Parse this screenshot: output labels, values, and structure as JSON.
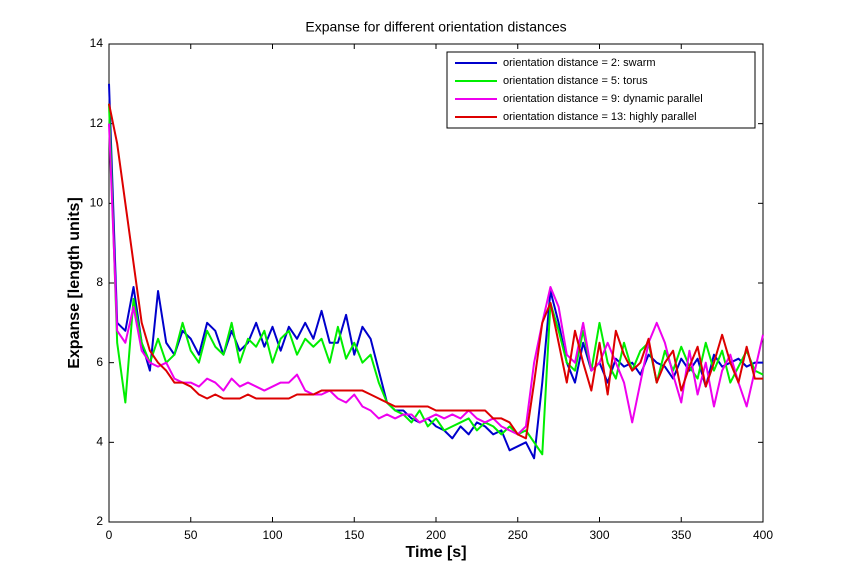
{
  "chart_data": {
    "type": "line",
    "title": "Expanse for different orientation distances",
    "x_label": "Time [s]",
    "y_label": "Expanse [length units]",
    "xlim": [
      0,
      400
    ],
    "xticks": [
      0,
      50,
      100,
      150,
      200,
      250,
      300,
      350,
      400
    ],
    "ylim": [
      2,
      14
    ],
    "yticks": [
      2,
      4,
      6,
      8,
      10,
      12,
      14
    ],
    "legend_position": "upper-right",
    "x": [
      0,
      5,
      10,
      15,
      20,
      25,
      30,
      35,
      40,
      45,
      50,
      55,
      60,
      65,
      70,
      75,
      80,
      85,
      90,
      95,
      100,
      105,
      110,
      115,
      120,
      125,
      130,
      135,
      140,
      145,
      150,
      155,
      160,
      165,
      170,
      175,
      180,
      185,
      190,
      195,
      200,
      205,
      210,
      215,
      220,
      225,
      230,
      235,
      240,
      245,
      250,
      255,
      260,
      265,
      270,
      275,
      280,
      285,
      290,
      295,
      300,
      305,
      310,
      315,
      320,
      325,
      330,
      335,
      340,
      345,
      350,
      355,
      360,
      365,
      370,
      375,
      380,
      385,
      390,
      395,
      400
    ],
    "series": [
      {
        "name": "orientation distance = 2: swarm",
        "color": "#0000cc",
        "values": [
          13,
          7,
          6.8,
          7.9,
          6.5,
          5.8,
          7.8,
          6.5,
          6.2,
          6.8,
          6.6,
          6.2,
          7.0,
          6.8,
          6.2,
          6.8,
          6.3,
          6.5,
          7.0,
          6.4,
          6.9,
          6.3,
          6.9,
          6.6,
          7.0,
          6.6,
          7.3,
          6.5,
          6.5,
          7.2,
          6.2,
          6.9,
          6.6,
          5.8,
          5.0,
          4.8,
          4.8,
          4.6,
          4.5,
          4.6,
          4.4,
          4.3,
          4.1,
          4.4,
          4.2,
          4.5,
          4.4,
          4.2,
          4.3,
          3.8,
          3.9,
          4.0,
          3.6,
          5.5,
          7.8,
          7.0,
          6.0,
          5.5,
          6.5,
          5.8,
          6.0,
          5.5,
          6.1,
          5.9,
          6.0,
          5.7,
          6.2,
          6.0,
          5.9,
          5.6,
          6.1,
          5.8,
          6.1,
          5.4,
          6.2,
          5.9,
          6.0,
          6.1,
          5.9,
          6.0,
          6.0
        ]
      },
      {
        "name": "orientation distance = 5: torus",
        "color": "#00ee00",
        "values": [
          12.5,
          6.5,
          5.0,
          7.6,
          6.5,
          6.0,
          6.6,
          6.0,
          6.2,
          7.0,
          6.3,
          6.0,
          6.8,
          6.4,
          6.2,
          7.0,
          6.0,
          6.6,
          6.4,
          6.8,
          6.0,
          6.6,
          6.8,
          6.2,
          6.6,
          6.4,
          6.6,
          6.0,
          6.9,
          6.1,
          6.5,
          6.0,
          6.2,
          5.5,
          5.0,
          4.8,
          4.7,
          4.5,
          4.8,
          4.4,
          4.6,
          4.3,
          4.4,
          4.5,
          4.6,
          4.3,
          4.5,
          4.4,
          4.2,
          4.4,
          4.2,
          4.3,
          4.0,
          3.7,
          7.5,
          6.8,
          6.0,
          5.8,
          6.8,
          5.8,
          7.0,
          6.0,
          5.6,
          6.5,
          5.8,
          6.3,
          6.5,
          5.5,
          6.3,
          5.8,
          6.4,
          5.9,
          5.6,
          6.5,
          5.8,
          6.3,
          5.5,
          5.9,
          6.3,
          5.8,
          5.7
        ]
      },
      {
        "name": "orientation distance = 9: dynamic parallel",
        "color": "#ee00ee",
        "values": [
          12,
          6.8,
          6.5,
          7.4,
          6.3,
          6.0,
          5.9,
          6.0,
          5.6,
          5.5,
          5.5,
          5.4,
          5.6,
          5.5,
          5.3,
          5.6,
          5.4,
          5.5,
          5.4,
          5.3,
          5.4,
          5.5,
          5.5,
          5.7,
          5.3,
          5.2,
          5.2,
          5.3,
          5.1,
          5.0,
          5.2,
          4.9,
          4.8,
          4.6,
          4.7,
          4.6,
          4.7,
          4.7,
          4.5,
          4.6,
          4.7,
          4.6,
          4.7,
          4.6,
          4.8,
          4.6,
          4.5,
          4.6,
          4.4,
          4.3,
          4.2,
          4.4,
          6.0,
          7.0,
          7.9,
          7.4,
          6.2,
          6.0,
          7.0,
          5.8,
          6.0,
          6.5,
          6.0,
          5.5,
          4.5,
          5.5,
          6.5,
          7.0,
          6.5,
          5.7,
          5.0,
          6.3,
          5.2,
          6.0,
          4.9,
          5.8,
          6.2,
          5.5,
          4.9,
          5.8,
          6.7
        ]
      },
      {
        "name": "orientation distance = 13: highly parallel",
        "color": "#dd0000",
        "values": [
          12.5,
          11.5,
          10.0,
          8.5,
          7.0,
          6.3,
          6.0,
          5.8,
          5.5,
          5.5,
          5.4,
          5.2,
          5.1,
          5.2,
          5.1,
          5.1,
          5.1,
          5.2,
          5.1,
          5.1,
          5.1,
          5.1,
          5.1,
          5.2,
          5.2,
          5.2,
          5.3,
          5.3,
          5.3,
          5.3,
          5.3,
          5.3,
          5.2,
          5.1,
          5.0,
          4.9,
          4.9,
          4.9,
          4.9,
          4.9,
          4.8,
          4.8,
          4.8,
          4.8,
          4.8,
          4.8,
          4.8,
          4.6,
          4.6,
          4.5,
          4.2,
          4.1,
          5.5,
          7.0,
          7.5,
          6.5,
          5.5,
          6.8,
          6.0,
          5.3,
          6.5,
          5.2,
          6.8,
          6.2,
          5.8,
          6.0,
          6.6,
          5.5,
          6.0,
          6.3,
          5.3,
          5.9,
          6.4,
          5.4,
          6.0,
          6.7,
          6.0,
          5.5,
          6.4,
          5.6,
          5.6
        ]
      }
    ]
  }
}
